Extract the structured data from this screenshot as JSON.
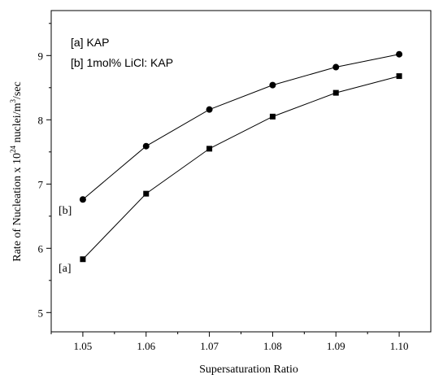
{
  "chart_data": {
    "type": "line",
    "title": "",
    "xlabel": "Supersaturation Ratio",
    "ylabel": "Rate of Nucleation x 10^24 nuclei/m^3/sec",
    "ylabel_parts": {
      "pre": "Rate of Nucleation x 10",
      "exp1": "24",
      "mid": " nuclei/m",
      "exp2": "3",
      "post": "/sec"
    },
    "x": [
      1.05,
      1.06,
      1.07,
      1.08,
      1.09,
      1.1
    ],
    "x_tick_labels": [
      "1.05",
      "1.06",
      "1.07",
      "1.08",
      "1.09",
      "1.10"
    ],
    "y_tick_values": [
      5,
      6,
      7,
      8,
      9
    ],
    "y_tick_labels": [
      "5",
      "6",
      "7",
      "8",
      "9"
    ],
    "xlim": [
      1.045,
      1.105
    ],
    "ylim": [
      4.7,
      9.7
    ],
    "grid": false,
    "legend_placement": "top-left",
    "legend_entries": [
      "[a] KAP",
      "[b] 1mol% LiCl: KAP"
    ],
    "series": [
      {
        "name": "[a]",
        "marker": "square",
        "color": "#000000",
        "values": [
          5.83,
          6.85,
          7.55,
          8.05,
          8.42,
          8.68
        ]
      },
      {
        "name": "[b]",
        "marker": "circle",
        "color": "#000000",
        "values": [
          6.76,
          7.59,
          8.16,
          8.54,
          8.82,
          9.02
        ]
      }
    ]
  }
}
